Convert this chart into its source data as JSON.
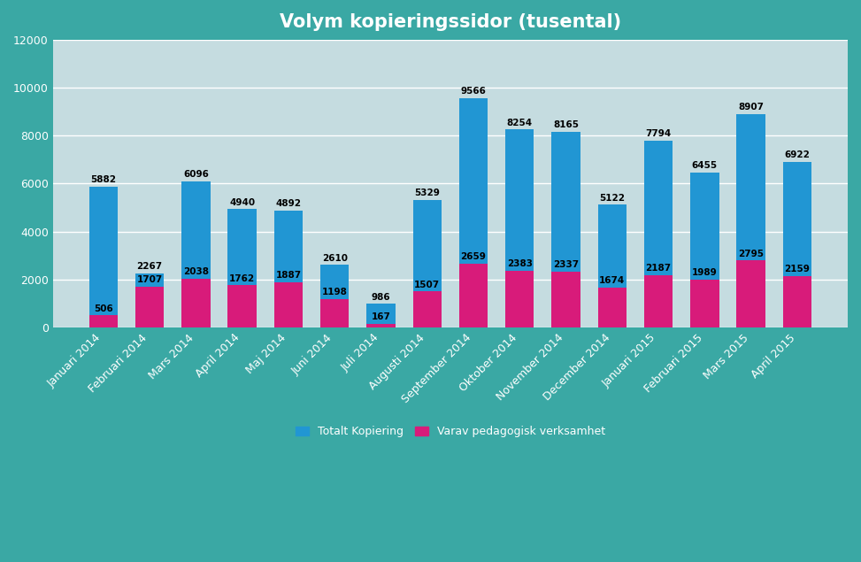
{
  "title": "Volym kopieringssidor (tusental)",
  "categories": [
    "Januari 2014",
    "Februari 2014",
    "Mars 2014",
    "April 2014",
    "Maj 2014",
    "Juni 2014",
    "Juli 2014",
    "Augusti 2014",
    "September 2014",
    "Oktober 2014",
    "November 2014",
    "December 2014",
    "Januari 2015",
    "Februari 2015",
    "Mars 2015",
    "April 2015"
  ],
  "total": [
    5882,
    2267,
    6096,
    4940,
    4892,
    2610,
    986,
    5329,
    9566,
    8254,
    8165,
    5122,
    7794,
    6455,
    8907,
    6922
  ],
  "pedagogisk": [
    506,
    1707,
    2038,
    1762,
    1887,
    1198,
    167,
    1507,
    2659,
    2383,
    2337,
    1674,
    2187,
    1989,
    2795,
    2159
  ],
  "color_total": "#2196D3",
  "color_pedagogisk": "#D81B7A",
  "background_outer": "#3AA8A4",
  "background_inner": "#C5DCE0",
  "legend_total": "Totalt Kopiering",
  "legend_pedagogisk": "Varav pedagogisk verksamhet",
  "ylim": [
    0,
    12000
  ],
  "yticks": [
    0,
    2000,
    4000,
    6000,
    8000,
    10000,
    12000
  ],
  "grid_color": "#ffffff",
  "title_fontsize": 15,
  "tick_fontsize": 9,
  "value_fontsize": 7.5
}
